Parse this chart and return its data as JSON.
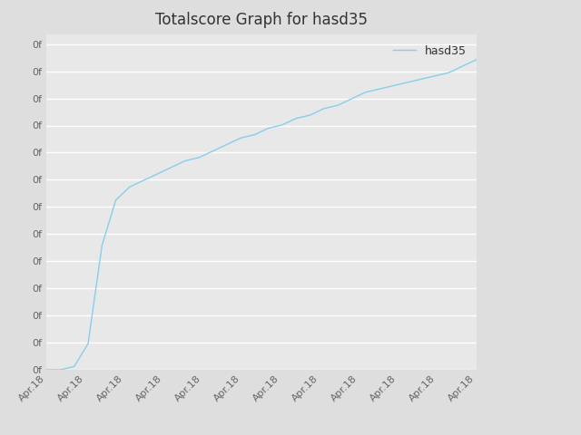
{
  "title": "Totalscore Graph for hasd35",
  "legend_label": "hasd35",
  "line_color": "#87ceeb",
  "plot_bg_color": "#e8e8e8",
  "grid_color": "#ffffff",
  "x_dates": [
    0,
    1,
    2,
    3,
    4,
    5,
    6,
    7,
    8,
    9,
    10,
    11,
    12,
    13,
    14,
    15,
    16,
    17,
    18,
    19,
    20,
    21,
    22,
    23,
    24,
    25,
    26,
    27,
    28,
    29,
    30,
    31
  ],
  "y_values": [
    0.0,
    0.0,
    0.01,
    0.08,
    0.38,
    0.52,
    0.56,
    0.58,
    0.6,
    0.62,
    0.64,
    0.65,
    0.67,
    0.69,
    0.71,
    0.72,
    0.74,
    0.75,
    0.77,
    0.78,
    0.8,
    0.81,
    0.83,
    0.85,
    0.86,
    0.87,
    0.88,
    0.89,
    0.9,
    0.91,
    0.93,
    0.95
  ],
  "x_tick_labels": [
    "Apr.18",
    "Apr.18",
    "Apr.18",
    "Apr.18",
    "Apr.18",
    "Apr.18",
    "Apr.18",
    "Apr.18",
    "Apr.18",
    "Apr.18",
    "Apr.18",
    "Apr.18"
  ],
  "y_tick_labels": [
    "0f",
    "0f",
    "0f",
    "0f",
    "0f",
    "0f",
    "0f",
    "0f",
    "0f",
    "0f",
    "0f",
    "0f",
    "0f"
  ],
  "title_fontsize": 12,
  "tick_fontsize": 8,
  "legend_fontsize": 9,
  "fig_bg_color": "#dedede",
  "n_yticks": 13,
  "n_xticks": 12
}
